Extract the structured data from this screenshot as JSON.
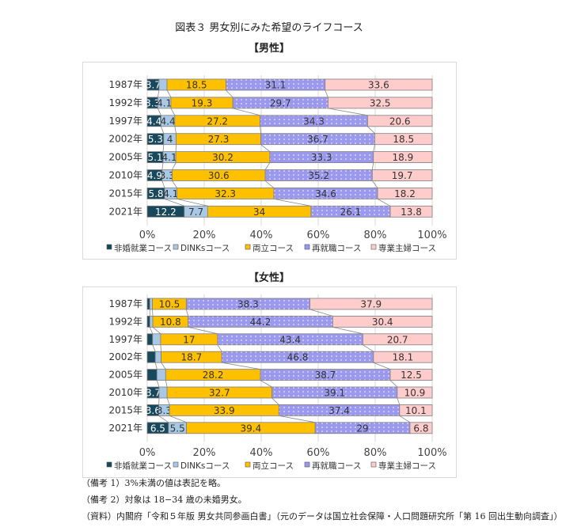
{
  "title": "図表３ 男女別にみた希望のライフコース",
  "legend": [
    {
      "label": "非婚就業コース",
      "color": "#17485c"
    },
    {
      "label": "DINKsコース",
      "color": "#a9c8e6"
    },
    {
      "label": "両立コース",
      "color": "#ffc000"
    },
    {
      "label": "再就職コース",
      "color": "#9a99ee"
    },
    {
      "label": "専業主婦コース",
      "color": "#ffcccc"
    }
  ],
  "notes": [
    "（備考 1）3%未満の値は表記を略。",
    "（備考 2）対象は 18−34 歳の未婚男女。",
    "（資料）内閣府「令和５年版 男女共同参画白書」（元のデータは国立社会保障・人口問題研究所「第 16 回出生動向調査」）"
  ],
  "chart_data": [
    {
      "type": "bar",
      "orientation": "horizontal",
      "stacked": "percent",
      "title": "【男性】",
      "categories": [
        "1987年",
        "1992年",
        "1997年",
        "2002年",
        "2005年",
        "2010年",
        "2015年",
        "2021年"
      ],
      "xticks": [
        "0%",
        "20%",
        "40%",
        "60%",
        "80%",
        "100%"
      ],
      "xlim": [
        0,
        100
      ],
      "series": [
        {
          "name": "非婚就業コース",
          "values": [
            3.7,
            3.3,
            4.4,
            5.3,
            5.1,
            4.9,
            5.8,
            12.2
          ]
        },
        {
          "name": "DINKsコース",
          "values": [
            2.5,
            4.1,
            4.4,
            4,
            4.1,
            3.3,
            4.1,
            7.7
          ]
        },
        {
          "name": "両立コース",
          "values": [
            18.5,
            19.3,
            27.2,
            27.3,
            30.2,
            30.6,
            32.3,
            34
          ]
        },
        {
          "name": "再就職コース",
          "values": [
            31.1,
            29.7,
            34.3,
            36.7,
            33.3,
            35.2,
            34.6,
            26.1
          ]
        },
        {
          "name": "専業主婦コース",
          "values": [
            33.6,
            32.5,
            20.6,
            18.5,
            18.9,
            19.7,
            18.2,
            13.8
          ]
        }
      ]
    },
    {
      "type": "bar",
      "orientation": "horizontal",
      "stacked": "percent",
      "title": "【女性】",
      "categories": [
        "1987年",
        "1992年",
        "1997年",
        "2002年",
        "2005年",
        "2010年",
        "2015年",
        "2021年"
      ],
      "xticks": [
        "0%",
        "20%",
        "40%",
        "60%",
        "80%",
        "100%"
      ],
      "xlim": [
        0,
        100
      ],
      "series": [
        {
          "name": "非婚就業コース",
          "values": [
            0.8,
            0.8,
            1.6,
            2.5,
            2.9,
            3.7,
            3.6,
            6.5
          ]
        },
        {
          "name": "DINKsコース",
          "values": [
            0.8,
            0.9,
            2.4,
            1.8,
            2.6,
            2.5,
            3.3,
            5.5
          ]
        },
        {
          "name": "両立コース",
          "values": [
            10.5,
            10.8,
            17,
            18.7,
            28.2,
            32.7,
            33.9,
            39.4
          ]
        },
        {
          "name": "再就職コース",
          "values": [
            38.3,
            44.2,
            43.4,
            46.8,
            38.7,
            39.1,
            37.4,
            29
          ]
        },
        {
          "name": "専業主婦コース",
          "values": [
            37.9,
            30.4,
            20.7,
            18.1,
            12.5,
            10.9,
            10.1,
            6.8
          ]
        }
      ]
    }
  ]
}
